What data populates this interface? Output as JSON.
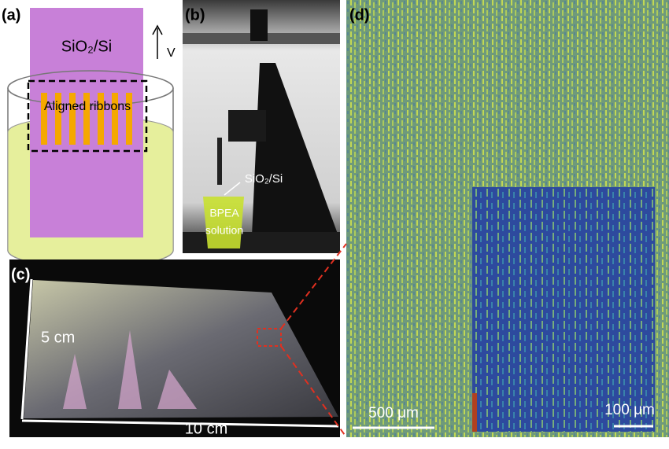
{
  "panel_a": {
    "label": "(a)",
    "substrate": "SiO₂/Si",
    "direction": "V",
    "region": "Aligned ribbons"
  },
  "panel_b": {
    "label": "(b)",
    "substrate": "SiO₂/Si",
    "solution": [
      "BPEA",
      "solution"
    ]
  },
  "panel_c": {
    "label": "(c)",
    "width": "5 cm",
    "length": "10 cm"
  },
  "panel_d": {
    "label": "(d)",
    "scale_main": "500 μm",
    "scale_inset": "100 μm"
  }
}
